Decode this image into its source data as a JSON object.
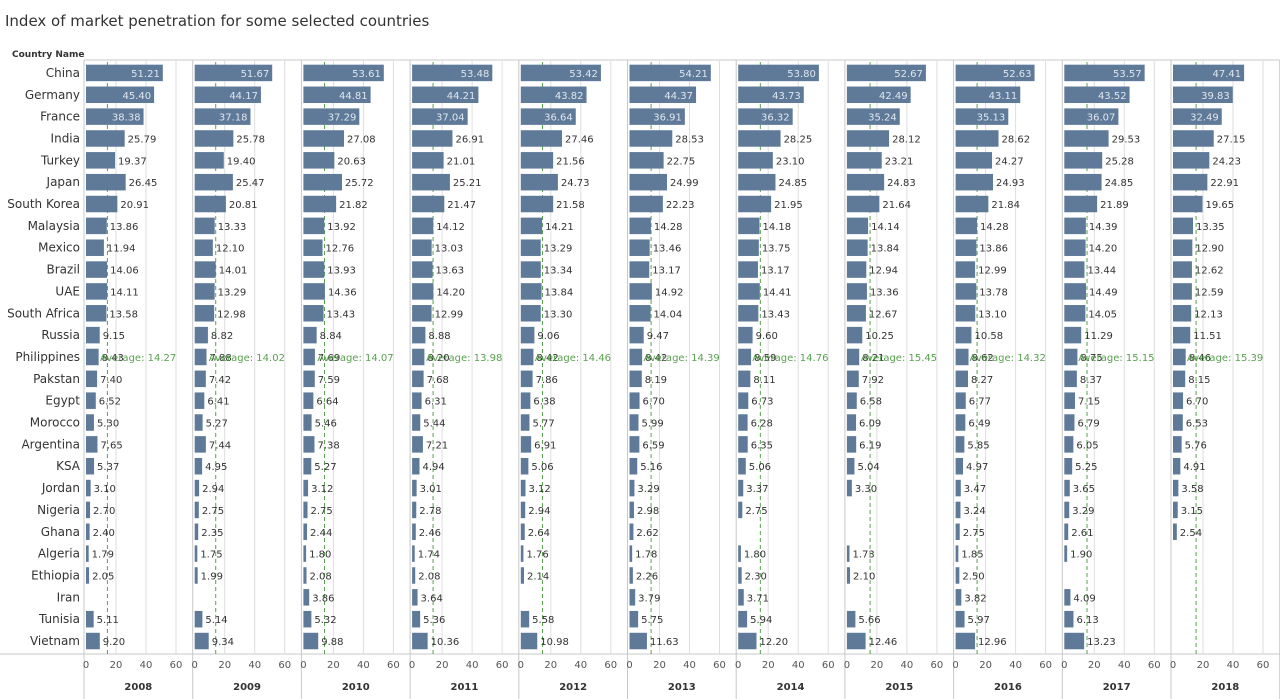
{
  "chart_data": {
    "type": "bar",
    "title": "Index of market penetration for some selected countries",
    "row_header": "Country Name",
    "categories": [
      "China",
      "Germany",
      "France",
      "India",
      "Turkey",
      "Japan",
      "South Korea",
      "Malaysia",
      "Mexico",
      "Brazil",
      "UAE",
      "South Africa",
      "Russia",
      "Philippines",
      "Pakstan",
      "Egypt",
      "Morocco",
      "Argentina",
      "KSA",
      "Jordan",
      "Nigeria",
      "Ghana",
      "Algeria",
      "Ethiopia",
      "Iran",
      "Tunisia",
      "Vietnam"
    ],
    "xlim": [
      0,
      60
    ],
    "xticks": [
      "0",
      "20",
      "40",
      "60"
    ],
    "colors": {
      "bar": "#5f7a99",
      "average": "#59a14f",
      "grid": "#dedede",
      "border": "#c8c8c8"
    },
    "series": [
      {
        "name": "2008",
        "average_label": "Average: 14.27",
        "average": 14.27,
        "values": [
          51.21,
          45.4,
          38.38,
          25.79,
          19.37,
          26.45,
          20.91,
          13.86,
          11.94,
          14.06,
          14.11,
          13.58,
          9.15,
          8.43,
          7.4,
          6.52,
          5.3,
          7.65,
          5.37,
          3.1,
          2.7,
          2.4,
          1.79,
          2.05,
          null,
          5.11,
          9.2
        ],
        "labels": [
          "51.21",
          "45.40",
          "38.38",
          "25.79",
          "19.37",
          "26.45",
          "20.91",
          "13.86",
          "11.94",
          "14.06",
          "14.11",
          "13.58",
          "9.15",
          "8.43",
          "7.40",
          "6.52",
          "5.30",
          "7.65",
          "5.37",
          "3.10",
          "2.70",
          "2.40",
          "1.79",
          "2.05",
          "",
          "5.11",
          "9.20"
        ]
      },
      {
        "name": "2009",
        "average_label": "Average: 14.02",
        "average": 14.02,
        "values": [
          51.67,
          44.17,
          37.18,
          25.78,
          19.4,
          25.47,
          20.81,
          13.33,
          12.1,
          14.01,
          13.29,
          12.98,
          8.82,
          7.88,
          7.42,
          6.41,
          5.27,
          7.44,
          4.95,
          2.94,
          2.75,
          2.35,
          1.75,
          1.99,
          null,
          5.14,
          9.34
        ],
        "labels": [
          "51.67",
          "44.17",
          "37.18",
          "25.78",
          "19.40",
          "25.47",
          "20.81",
          "13.33",
          "12.10",
          "14.01",
          "13.29",
          "12.98",
          "8.82",
          "7.88",
          "7.42",
          "6.41",
          "5.27",
          "7.44",
          "4.95",
          "2.94",
          "2.75",
          "2.35",
          "1.75",
          "1.99",
          "",
          "5.14",
          "9.34"
        ]
      },
      {
        "name": "2010",
        "average_label": "Average: 14.07",
        "average": 14.07,
        "values": [
          53.61,
          44.81,
          37.29,
          27.08,
          20.63,
          25.72,
          21.82,
          13.92,
          12.76,
          13.93,
          14.36,
          13.43,
          8.84,
          7.69,
          7.59,
          6.64,
          5.46,
          7.38,
          5.27,
          3.12,
          2.75,
          2.44,
          1.8,
          2.08,
          3.86,
          5.32,
          9.88
        ],
        "labels": [
          "53.61",
          "44.81",
          "37.29",
          "27.08",
          "20.63",
          "25.72",
          "21.82",
          "13.92",
          "12.76",
          "13.93",
          "14.36",
          "13.43",
          "8.84",
          "7.69",
          "7.59",
          "6.64",
          "5.46",
          "7.38",
          "5.27",
          "3.12",
          "2.75",
          "2.44",
          "1.80",
          "2.08",
          "3.86",
          "5.32",
          "9.88"
        ]
      },
      {
        "name": "2011",
        "average_label": "Average: 13.98",
        "average": 13.98,
        "values": [
          53.48,
          44.21,
          37.04,
          26.91,
          21.01,
          25.21,
          21.47,
          14.12,
          13.03,
          13.63,
          14.2,
          12.99,
          8.88,
          8.2,
          7.68,
          6.31,
          5.44,
          7.21,
          4.94,
          3.01,
          2.78,
          2.46,
          1.74,
          2.08,
          3.64,
          5.36,
          10.36
        ],
        "labels": [
          "53.48",
          "44.21",
          "37.04",
          "26.91",
          "21.01",
          "25.21",
          "21.47",
          "14.12",
          "13.03",
          "13.63",
          "14.20",
          "12.99",
          "8.88",
          "8.20",
          "7.68",
          "6.31",
          "5.44",
          "7.21",
          "4.94",
          "3.01",
          "2.78",
          "2.46",
          "1.74",
          "2.08",
          "3.64",
          "5.36",
          "10.36"
        ]
      },
      {
        "name": "2012",
        "average_label": "Average: 14.46",
        "average": 14.46,
        "values": [
          53.42,
          43.82,
          36.64,
          27.46,
          21.56,
          24.73,
          21.58,
          14.21,
          13.29,
          13.34,
          13.84,
          13.3,
          9.06,
          8.42,
          7.86,
          6.38,
          5.77,
          6.91,
          5.06,
          3.12,
          2.94,
          2.64,
          1.76,
          2.14,
          null,
          5.58,
          10.98
        ],
        "labels": [
          "53.42",
          "43.82",
          "36.64",
          "27.46",
          "21.56",
          "24.73",
          "21.58",
          "14.21",
          "13.29",
          "13.34",
          "13.84",
          "13.30",
          "9.06",
          "8.42",
          "7.86",
          "6.38",
          "5.77",
          "6.91",
          "5.06",
          "3.12",
          "2.94",
          "2.64",
          "1.76",
          "2.14",
          "",
          "5.58",
          "10.98"
        ]
      },
      {
        "name": "2013",
        "average_label": "Average: 14.39",
        "average": 14.39,
        "values": [
          54.21,
          44.37,
          36.91,
          28.53,
          22.75,
          24.99,
          22.23,
          14.28,
          13.46,
          13.17,
          14.92,
          14.04,
          9.47,
          8.42,
          8.19,
          6.7,
          5.99,
          6.59,
          5.16,
          3.29,
          2.98,
          2.62,
          1.78,
          2.26,
          3.79,
          5.75,
          11.63
        ],
        "labels": [
          "54.21",
          "44.37",
          "36.91",
          "28.53",
          "22.75",
          "24.99",
          "22.23",
          "14.28",
          "13.46",
          "13.17",
          "14.92",
          "14.04",
          "9.47",
          "8.42",
          "8.19",
          "6.70",
          "5.99",
          "6.59",
          "5.16",
          "3.29",
          "2.98",
          "2.62",
          "1.78",
          "2.26",
          "3.79",
          "5.75",
          "11.63"
        ]
      },
      {
        "name": "2014",
        "average_label": "Average: 14.76",
        "average": 14.76,
        "values": [
          53.8,
          43.73,
          36.32,
          28.25,
          23.1,
          24.85,
          21.95,
          14.18,
          13.75,
          13.17,
          14.41,
          13.43,
          9.6,
          8.59,
          8.11,
          6.73,
          6.28,
          6.35,
          5.06,
          3.37,
          2.75,
          null,
          1.8,
          2.3,
          3.71,
          5.94,
          12.2
        ],
        "labels": [
          "53.80",
          "43.73",
          "36.32",
          "28.25",
          "23.10",
          "24.85",
          "21.95",
          "14.18",
          "13.75",
          "13.17",
          "14.41",
          "13.43",
          "9.60",
          "8.59",
          "8.11",
          "6.73",
          "6.28",
          "6.35",
          "5.06",
          "3.37",
          "2.75",
          "",
          "1.80",
          "2.30",
          "3.71",
          "5.94",
          "12.20"
        ]
      },
      {
        "name": "2015",
        "average_label": "Average: 15.45",
        "average": 15.45,
        "values": [
          52.67,
          42.49,
          35.24,
          28.12,
          23.21,
          24.83,
          21.64,
          14.14,
          13.84,
          12.94,
          13.36,
          12.67,
          10.25,
          8.21,
          7.92,
          6.58,
          6.09,
          6.19,
          5.04,
          3.3,
          null,
          null,
          1.73,
          2.1,
          null,
          5.66,
          12.46
        ],
        "labels": [
          "52.67",
          "42.49",
          "35.24",
          "28.12",
          "23.21",
          "24.83",
          "21.64",
          "14.14",
          "13.84",
          "12.94",
          "13.36",
          "12.67",
          "10.25",
          "8.21",
          "7.92",
          "6.58",
          "6.09",
          "6.19",
          "5.04",
          "3.30",
          "",
          "",
          "1.73",
          "2.10",
          "",
          "5.66",
          "12.46"
        ]
      },
      {
        "name": "2016",
        "average_label": "Average: 14.32",
        "average": 14.32,
        "values": [
          52.63,
          43.11,
          35.13,
          28.62,
          24.27,
          24.93,
          21.84,
          14.28,
          13.86,
          12.99,
          13.78,
          13.1,
          10.58,
          8.62,
          8.27,
          6.77,
          6.49,
          5.85,
          4.97,
          3.47,
          3.24,
          2.75,
          1.85,
          2.5,
          3.82,
          5.97,
          12.96
        ],
        "labels": [
          "52.63",
          "43.11",
          "35.13",
          "28.62",
          "24.27",
          "24.93",
          "21.84",
          "14.28",
          "13.86",
          "12.99",
          "13.78",
          "13.10",
          "10.58",
          "8.62",
          "8.27",
          "6.77",
          "6.49",
          "5.85",
          "4.97",
          "3.47",
          "3.24",
          "2.75",
          "1.85",
          "2.50",
          "3.82",
          "5.97",
          "12.96"
        ]
      },
      {
        "name": "2017",
        "average_label": "Average: 15.15",
        "average": 15.15,
        "values": [
          53.57,
          43.52,
          36.07,
          29.53,
          25.28,
          24.85,
          21.89,
          14.39,
          14.2,
          13.44,
          14.49,
          14.05,
          11.29,
          8.75,
          8.37,
          7.15,
          6.79,
          6.05,
          5.25,
          3.65,
          3.29,
          2.61,
          1.9,
          null,
          4.09,
          6.13,
          13.23
        ],
        "labels": [
          "53.57",
          "43.52",
          "36.07",
          "29.53",
          "25.28",
          "24.85",
          "21.89",
          "14.39",
          "14.20",
          "13.44",
          "14.49",
          "14.05",
          "11.29",
          "8.75",
          "8.37",
          "7.15",
          "6.79",
          "6.05",
          "5.25",
          "3.65",
          "3.29",
          "2.61",
          "1.90",
          "",
          "4.09",
          "6.13",
          "13.23"
        ]
      },
      {
        "name": "2018",
        "average_label": "Average: 15.39",
        "average": 15.39,
        "values": [
          47.41,
          39.83,
          32.49,
          27.15,
          24.23,
          22.91,
          19.65,
          13.35,
          12.9,
          12.62,
          12.59,
          12.13,
          11.51,
          8.46,
          8.15,
          6.7,
          6.53,
          5.76,
          4.91,
          3.58,
          3.15,
          2.54,
          null,
          null,
          null,
          null,
          null
        ],
        "labels": [
          "47.41",
          "39.83",
          "32.49",
          "27.15",
          "24.23",
          "22.91",
          "19.65",
          "13.35",
          "12.90",
          "12.62",
          "12.59",
          "12.13",
          "11.51",
          "8.46",
          "8.15",
          "6.70",
          "6.53",
          "5.76",
          "4.91",
          "3.58",
          "3.15",
          "2.54",
          "",
          "",
          "",
          "",
          ""
        ]
      }
    ]
  }
}
